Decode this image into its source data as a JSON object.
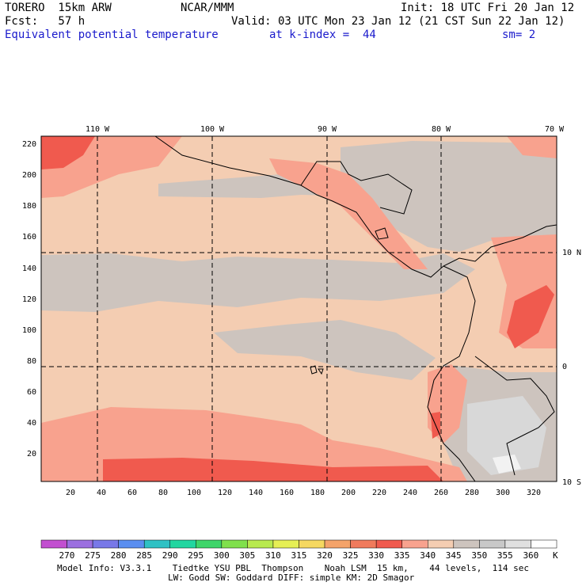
{
  "header": {
    "model": "TORERO  15km ARW",
    "org": "NCAR/MMM",
    "init": "Init: 18 UTC Fri 20 Jan 12",
    "fcst": "Fcst:   57 h",
    "valid": "Valid: 03 UTC Mon 23 Jan 12 (21 CST Sun 22 Jan 12)",
    "field": "Equivalent potential temperature",
    "level": "at k-index =  44",
    "smooth": "sm= 2"
  },
  "map": {
    "lon_labels": [
      "110 W",
      "100 W",
      "90 W",
      "80 W",
      "70 W"
    ],
    "lat_labels": [
      "10 N",
      "0",
      "10 S"
    ],
    "y_ticks": [
      "220",
      "200",
      "180",
      "160",
      "140",
      "120",
      "100",
      "80",
      "60",
      "40",
      "20"
    ],
    "x_ticks": [
      "20",
      "40",
      "60",
      "80",
      "100",
      "120",
      "140",
      "160",
      "180",
      "200",
      "220",
      "240",
      "260",
      "280",
      "300",
      "320"
    ]
  },
  "colorbar": {
    "units": "K",
    "levels": [
      "270",
      "275",
      "280",
      "285",
      "290",
      "295",
      "300",
      "305",
      "310",
      "315",
      "320",
      "325",
      "330",
      "335",
      "340",
      "345",
      "350",
      "355",
      "360"
    ],
    "colors": [
      "#c24fd0",
      "#9b6fe0",
      "#7878e8",
      "#5a8ef0",
      "#2fc1c4",
      "#22d6a0",
      "#3ed56a",
      "#80e04c",
      "#b8ea4e",
      "#e6ef55",
      "#f6d860",
      "#f4a36a",
      "#f07a5c",
      "#f05a4e",
      "#f8a28e",
      "#f4cdb2",
      "#cdc4be",
      "#c8c8c8",
      "#e0e0e0",
      "#ffffff"
    ]
  },
  "footer": {
    "line1": "Model Info: V3.3.1    Tiedtke YSU PBL  Thompson    Noah LSM  15 km,    44 levels,  114 sec",
    "line2": "LW: Godd SW: Goddard DIFF: simple KM: 2D Smagor"
  }
}
